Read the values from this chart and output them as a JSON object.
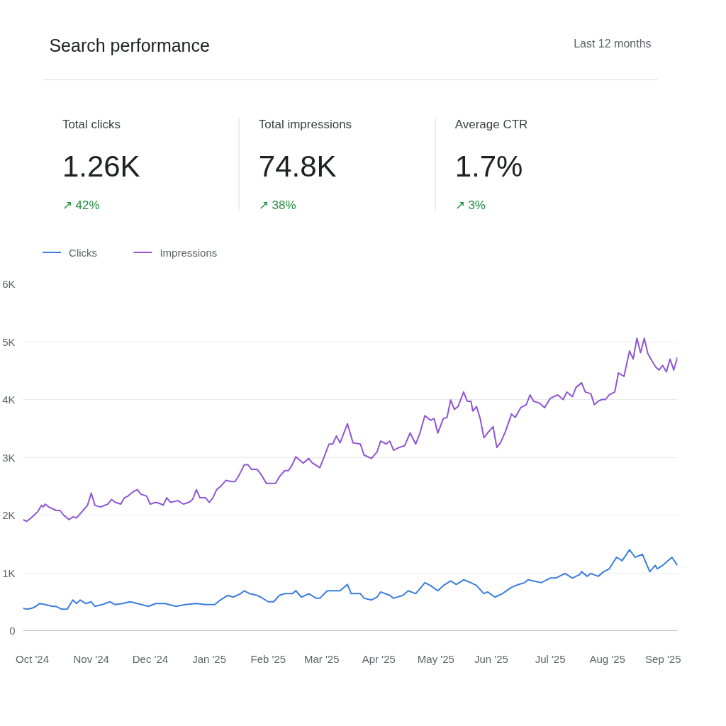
{
  "chart_data": [
    {
      "type": "other",
      "title": "Search performance",
      "subtitle": "Last 12 months",
      "categories": [
        "Total clicks",
        "Total impressions",
        "Average CTR"
      ],
      "annotations": [
        "1.26K",
        "74.8K",
        "1.7%",
        "↗ 42%",
        "↗ 38%",
        "↗ 3%"
      ]
    },
    {
      "type": "line",
      "legend": "top left",
      "grid": "y",
      "marker": "none",
      "line_style": "solid",
      "xlim": [
        "2024-09-30",
        "2025-09-20"
      ],
      "ylim": [
        0,
        6000
      ],
      "xticks": [
        {
          "value": "2024-10-05",
          "label": "Oct '24"
        },
        {
          "value": "2024-11-06",
          "label": "Nov '24"
        },
        {
          "value": "2024-12-08",
          "label": "Dec '24"
        },
        {
          "value": "2025-01-09",
          "label": "Jan '25"
        },
        {
          "value": "2025-02-10",
          "label": "Feb '25"
        },
        {
          "value": "2025-03-11",
          "label": "Mar '25"
        },
        {
          "value": "2025-04-11",
          "label": "Apr '25"
        },
        {
          "value": "2025-05-12",
          "label": "May '25"
        },
        {
          "value": "2025-06-11",
          "label": "Jun '25"
        },
        {
          "value": "2025-07-13",
          "label": "Jul '25"
        },
        {
          "value": "2025-08-13",
          "label": "Aug '25"
        },
        {
          "value": "2025-09-13",
          "label": "Sep '25"
        }
      ],
      "yticks": [
        {
          "value": 0,
          "label": "0"
        },
        {
          "value": 1000,
          "label": "1K"
        },
        {
          "value": 2000,
          "label": "2K"
        },
        {
          "value": 3000,
          "label": "3K"
        },
        {
          "value": 4000,
          "label": "4K"
        },
        {
          "value": 5000,
          "label": "5K"
        },
        {
          "value": 6000,
          "label": "6K"
        }
      ],
      "series": [
        {
          "name": "Clicks",
          "color": "#3b7ddd",
          "x": [
            "2024-09-30",
            "2024-10-02",
            "2024-10-05",
            "2024-10-07",
            "2024-10-09",
            "2024-10-12",
            "2024-10-16",
            "2024-10-18",
            "2024-10-21",
            "2024-10-24",
            "2024-10-27",
            "2024-10-29",
            "2024-10-31",
            "2024-11-03",
            "2024-11-06",
            "2024-11-08",
            "2024-11-12",
            "2024-11-16",
            "2024-11-19",
            "2024-11-23",
            "2024-11-27",
            "2024-12-01",
            "2024-12-07",
            "2024-12-11",
            "2024-12-16",
            "2024-12-22",
            "2024-12-27",
            "2025-01-02",
            "2025-01-07",
            "2025-01-12",
            "2025-01-15",
            "2025-01-19",
            "2025-01-22",
            "2025-01-26",
            "2025-01-28",
            "2025-01-31",
            "2025-02-04",
            "2025-02-06",
            "2025-02-10",
            "2025-02-13",
            "2025-02-16",
            "2025-02-19",
            "2025-02-23",
            "2025-02-25",
            "2025-02-28",
            "2025-03-04",
            "2025-03-08",
            "2025-03-10",
            "2025-03-14",
            "2025-03-18",
            "2025-03-21",
            "2025-03-25",
            "2025-03-27",
            "2025-04-01",
            "2025-04-03",
            "2025-04-07",
            "2025-04-10",
            "2025-04-12",
            "2025-04-17",
            "2025-04-19",
            "2025-04-24",
            "2025-04-27",
            "2025-05-01",
            "2025-05-06",
            "2025-05-09",
            "2025-05-13",
            "2025-05-16",
            "2025-05-20",
            "2025-05-23",
            "2025-05-27",
            "2025-05-31",
            "2025-06-03",
            "2025-06-07",
            "2025-06-09",
            "2025-06-13",
            "2025-06-17",
            "2025-06-22",
            "2025-06-26",
            "2025-06-29",
            "2025-07-01",
            "2025-07-04",
            "2025-07-08",
            "2025-07-13",
            "2025-07-16",
            "2025-07-21",
            "2025-07-25",
            "2025-07-29",
            "2025-07-30",
            "2025-08-02",
            "2025-08-04",
            "2025-08-08",
            "2025-08-11",
            "2025-08-14",
            "2025-08-18",
            "2025-08-21",
            "2025-08-25",
            "2025-08-28",
            "2025-09-01",
            "2025-09-05",
            "2025-09-08",
            "2025-09-09",
            "2025-09-12",
            "2025-09-17",
            "2025-09-20"
          ],
          "values": [
            390,
            370,
            390,
            420,
            470,
            450,
            420,
            420,
            370,
            370,
            530,
            470,
            530,
            470,
            500,
            420,
            450,
            500,
            450,
            470,
            500,
            470,
            420,
            470,
            470,
            420,
            450,
            470,
            450,
            450,
            530,
            610,
            580,
            640,
            690,
            640,
            610,
            580,
            500,
            500,
            610,
            640,
            640,
            690,
            580,
            640,
            560,
            560,
            690,
            690,
            690,
            800,
            640,
            640,
            560,
            530,
            580,
            670,
            610,
            560,
            610,
            690,
            640,
            830,
            780,
            690,
            780,
            860,
            800,
            880,
            830,
            780,
            640,
            670,
            580,
            640,
            750,
            800,
            830,
            880,
            860,
            830,
            910,
            910,
            990,
            910,
            970,
            1020,
            940,
            990,
            940,
            1020,
            1070,
            1270,
            1210,
            1400,
            1270,
            1320,
            1020,
            1130,
            1070,
            1130,
            1270,
            1130
          ]
        },
        {
          "name": "Impressions",
          "color": "#8e55d4",
          "x": [
            "2024-09-30",
            "2024-10-02",
            "2024-10-05",
            "2024-10-08",
            "2024-10-10",
            "2024-10-11",
            "2024-10-12",
            "2024-10-14",
            "2024-10-18",
            "2024-10-20",
            "2024-10-22",
            "2024-10-25",
            "2024-10-27",
            "2024-10-29",
            "2024-11-01",
            "2024-11-04",
            "2024-11-06",
            "2024-11-08",
            "2024-11-11",
            "2024-11-15",
            "2024-11-17",
            "2024-11-19",
            "2024-11-22",
            "2024-11-24",
            "2024-11-26",
            "2024-11-29",
            "2024-12-01",
            "2024-12-03",
            "2024-12-06",
            "2024-12-08",
            "2024-12-11",
            "2024-12-14",
            "2024-12-15",
            "2024-12-17",
            "2024-12-19",
            "2024-12-23",
            "2024-12-26",
            "2024-12-29",
            "2024-12-31",
            "2025-01-02",
            "2025-01-04",
            "2025-01-07",
            "2025-01-09",
            "2025-01-11",
            "2025-01-13",
            "2025-01-15",
            "2025-01-18",
            "2025-01-21",
            "2025-01-23",
            "2025-01-25",
            "2025-01-28",
            "2025-01-30",
            "2025-02-01",
            "2025-02-04",
            "2025-02-06",
            "2025-02-09",
            "2025-02-11",
            "2025-02-14",
            "2025-02-16",
            "2025-02-19",
            "2025-02-21",
            "2025-02-23",
            "2025-02-25",
            "2025-03-01",
            "2025-03-04",
            "2025-03-06",
            "2025-03-10",
            "2025-03-12",
            "2025-03-15",
            "2025-03-17",
            "2025-03-19",
            "2025-03-21",
            "2025-03-25",
            "2025-03-28",
            "2025-04-01",
            "2025-04-03",
            "2025-04-07",
            "2025-04-10",
            "2025-04-12",
            "2025-04-15",
            "2025-04-17",
            "2025-04-19",
            "2025-04-22",
            "2025-04-25",
            "2025-04-28",
            "2025-05-01",
            "2025-05-03",
            "2025-05-06",
            "2025-05-09",
            "2025-05-11",
            "2025-05-13",
            "2025-05-16",
            "2025-05-18",
            "2025-05-20",
            "2025-05-22",
            "2025-05-24",
            "2025-05-27",
            "2025-05-29",
            "2025-05-31",
            "2025-06-01",
            "2025-06-03",
            "2025-06-05",
            "2025-06-07",
            "2025-06-09",
            "2025-06-12",
            "2025-06-14",
            "2025-06-16",
            "2025-06-19",
            "2025-06-22",
            "2025-06-24",
            "2025-06-27",
            "2025-06-30",
            "2025-07-02",
            "2025-07-04",
            "2025-07-07",
            "2025-07-10",
            "2025-07-13",
            "2025-07-15",
            "2025-07-17",
            "2025-07-20",
            "2025-07-22",
            "2025-07-25",
            "2025-07-27",
            "2025-07-30",
            "2025-08-01",
            "2025-08-04",
            "2025-08-06",
            "2025-08-08",
            "2025-08-10",
            "2025-08-12",
            "2025-08-14",
            "2025-08-17",
            "2025-08-19",
            "2025-08-22",
            "2025-08-25",
            "2025-08-27",
            "2025-08-29",
            "2025-08-31",
            "2025-09-02",
            "2025-09-04",
            "2025-09-08",
            "2025-09-10",
            "2025-09-12",
            "2025-09-14",
            "2025-09-16",
            "2025-09-18",
            "2025-09-20"
          ],
          "values": [
            1920,
            1890,
            1970,
            2060,
            2170,
            2140,
            2190,
            2140,
            2080,
            2080,
            2000,
            1920,
            1970,
            1950,
            2060,
            2170,
            2380,
            2170,
            2140,
            2190,
            2270,
            2220,
            2190,
            2300,
            2330,
            2410,
            2440,
            2360,
            2330,
            2190,
            2220,
            2190,
            2170,
            2300,
            2220,
            2250,
            2190,
            2220,
            2270,
            2440,
            2300,
            2300,
            2220,
            2300,
            2440,
            2490,
            2600,
            2580,
            2580,
            2680,
            2870,
            2870,
            2790,
            2790,
            2710,
            2550,
            2550,
            2550,
            2660,
            2770,
            2770,
            2870,
            3010,
            2900,
            2980,
            2900,
            2820,
            2980,
            3230,
            3230,
            3370,
            3250,
            3580,
            3250,
            3230,
            3040,
            2980,
            3090,
            3280,
            3230,
            3280,
            3120,
            3170,
            3200,
            3420,
            3230,
            3390,
            3720,
            3640,
            3670,
            3420,
            3670,
            3690,
            3990,
            3830,
            3880,
            4130,
            3970,
            3970,
            3800,
            3880,
            3670,
            3340,
            3420,
            3530,
            3170,
            3250,
            3470,
            3750,
            3690,
            3860,
            3910,
            4080,
            3970,
            3940,
            3860,
            4020,
            4050,
            4080,
            4000,
            4130,
            4050,
            4210,
            4290,
            4130,
            4100,
            3910,
            3970,
            4000,
            4000,
            4080,
            4130,
            4460,
            4400,
            4840,
            4700,
            5060,
            4810,
            5060,
            4790,
            4570,
            4510,
            4590,
            4480,
            4700,
            4510,
            4730
          ]
        }
      ]
    }
  ]
}
